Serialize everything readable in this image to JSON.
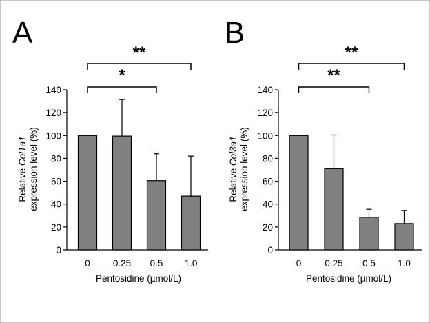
{
  "chart_data": [
    {
      "type": "bar",
      "panel_label": "A",
      "categories": [
        "0",
        "0.25",
        "0.5",
        "1.0"
      ],
      "values": [
        100,
        99.5,
        60.5,
        47
      ],
      "error_upper": [
        0,
        32,
        23.5,
        35
      ],
      "xlabel": "Pentosidine (µmol/L)",
      "ylabel_line1_prefix": "Relative ",
      "ylabel_line1_gene": "Col1a1",
      "ylabel_line2": "expression level (%)",
      "ylim": [
        0,
        140
      ],
      "yticks": [
        0,
        20,
        40,
        60,
        80,
        100,
        120,
        140
      ],
      "bar_color": "#808080",
      "significance": [
        {
          "from": "0",
          "to": "0.5",
          "label": "*"
        },
        {
          "from": "0",
          "to": "1.0",
          "label": "**"
        }
      ]
    },
    {
      "type": "bar",
      "panel_label": "B",
      "categories": [
        "0",
        "0.25",
        "0.5",
        "1.0"
      ],
      "values": [
        100,
        71,
        28.5,
        23
      ],
      "error_upper": [
        0,
        29.5,
        7,
        11.5
      ],
      "xlabel": "Pentosidine (µmol/L)",
      "ylabel_line1_prefix": "Relative ",
      "ylabel_line1_gene": "Col3a1",
      "ylabel_line2": "expression level (%)",
      "ylim": [
        0,
        140
      ],
      "yticks": [
        0,
        20,
        40,
        60,
        80,
        100,
        120,
        140
      ],
      "bar_color": "#808080",
      "significance": [
        {
          "from": "0",
          "to": "0.5",
          "label": "**"
        },
        {
          "from": "0",
          "to": "1.0",
          "label": "**"
        }
      ]
    }
  ]
}
